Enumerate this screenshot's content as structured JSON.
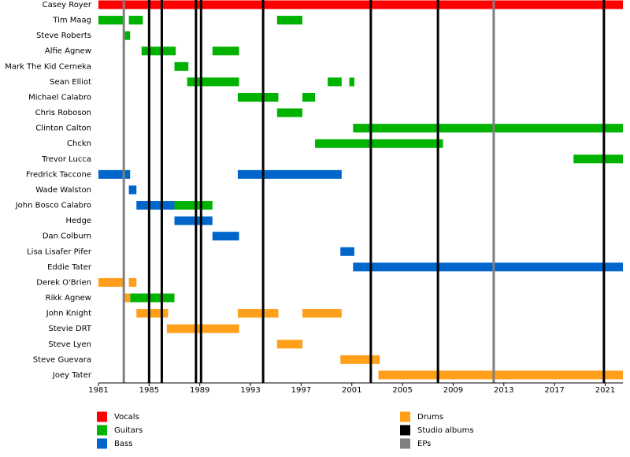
{
  "chart_data": {
    "type": "timeline",
    "categories": [
      "Casey Royer",
      "Tim Maag",
      "Steve Roberts",
      "Alfie Agnew",
      "Mark The Kid Cerneka",
      "Sean Elliot",
      "Michael Calabro",
      "Chris Roboson",
      "Clinton Calton",
      "Chckn",
      "Trevor Lucca",
      "Fredrick Taccone",
      "Wade Walston",
      "John Bosco Calabro",
      "Hedge",
      "Dan Colburn",
      "Lisa Lisafer Pifer",
      "Eddie Tater",
      "Derek O'Brien",
      "Rikk Agnew",
      "John Knight",
      "Stevie DRT",
      "Steve Lyen",
      "Steve Guevara",
      "Joey Tater"
    ],
    "series": [
      {
        "name": "Vocals",
        "color": "#ff0000",
        "values": [
          [
            [
              1981,
              2022.4
            ]
          ],
          [],
          [],
          [],
          [],
          [],
          [],
          [],
          [],
          [],
          [],
          [],
          [],
          [],
          [],
          [],
          [],
          [],
          [],
          [],
          [],
          [],
          [],
          [],
          []
        ]
      },
      {
        "name": "Guitars",
        "color": "#00b300",
        "values": [
          [],
          [
            [
              1981,
              1983
            ],
            [
              1983.4,
              1984.5
            ],
            [
              1995.1,
              1997.1
            ]
          ],
          [
            [
              1983,
              1983.5
            ]
          ],
          [
            [
              1984.4,
              1987.1
            ],
            [
              1990,
              1992.1
            ]
          ],
          [
            [
              1987,
              1988.1
            ]
          ],
          [
            [
              1988,
              1992.1
            ],
            [
              1999.1,
              2000.2
            ],
            [
              2000.8,
              2001.2
            ]
          ],
          [
            [
              1992,
              1995.2
            ],
            [
              1997.1,
              1998.1
            ]
          ],
          [
            [
              1995.1,
              1997.1
            ]
          ],
          [
            [
              2001.1,
              2022.4
            ]
          ],
          [
            [
              1998.1,
              2008.2
            ]
          ],
          [
            [
              2018.5,
              2022.4
            ]
          ],
          [],
          [],
          [
            [
              1987,
              1990
            ]
          ],
          [],
          [],
          [],
          [],
          [],
          [
            [
              1983.5,
              1987
            ]
          ],
          [],
          [],
          [],
          [],
          []
        ]
      },
      {
        "name": "Bass",
        "color": "#0066cc",
        "values": [
          [],
          [],
          [],
          [],
          [],
          [],
          [],
          [],
          [],
          [],
          [],
          [
            [
              1981,
              1983.5
            ],
            [
              1992,
              2000.2
            ]
          ],
          [
            [
              1983.4,
              1984
            ]
          ],
          [
            [
              1984,
              1987
            ]
          ],
          [
            [
              1987,
              1990
            ]
          ],
          [
            [
              1990,
              1992.1
            ]
          ],
          [
            [
              2000.1,
              2001.2
            ]
          ],
          [
            [
              2001.1,
              2022.4
            ]
          ],
          [],
          [],
          [],
          [],
          [],
          [],
          []
        ]
      },
      {
        "name": "Drums",
        "color": "#ff9f1a",
        "values": [
          [],
          [],
          [],
          [],
          [],
          [],
          [],
          [],
          [],
          [],
          [],
          [],
          [],
          [],
          [],
          [],
          [],
          [],
          [
            [
              1981,
              1983
            ],
            [
              1983.4,
              1984
            ]
          ],
          [
            [
              1983,
              1983.5
            ]
          ],
          [
            [
              1984,
              1986.5
            ],
            [
              1992,
              1995.2
            ],
            [
              1997.1,
              2000.2
            ]
          ],
          [
            [
              1986.4,
              1992.1
            ]
          ],
          [
            [
              1995.1,
              1997.1
            ]
          ],
          [
            [
              2000.1,
              2003.2
            ]
          ],
          [
            [
              2003.1,
              2022.4
            ]
          ]
        ]
      }
    ],
    "markers": [
      {
        "name": "Studio albums",
        "color": "#000000",
        "values": [
          1985,
          1986,
          1988.7,
          1989.1,
          1994,
          2002.5,
          2007.8,
          2020.9
        ]
      },
      {
        "name": "EPs",
        "color": "#808080",
        "values": [
          1983,
          2012.2
        ]
      }
    ],
    "xlim": [
      1981,
      2022.4
    ],
    "xticks": [
      1981,
      1985,
      1989,
      1993,
      1997,
      2001,
      2005,
      2009,
      2013,
      2017,
      2021
    ]
  }
}
